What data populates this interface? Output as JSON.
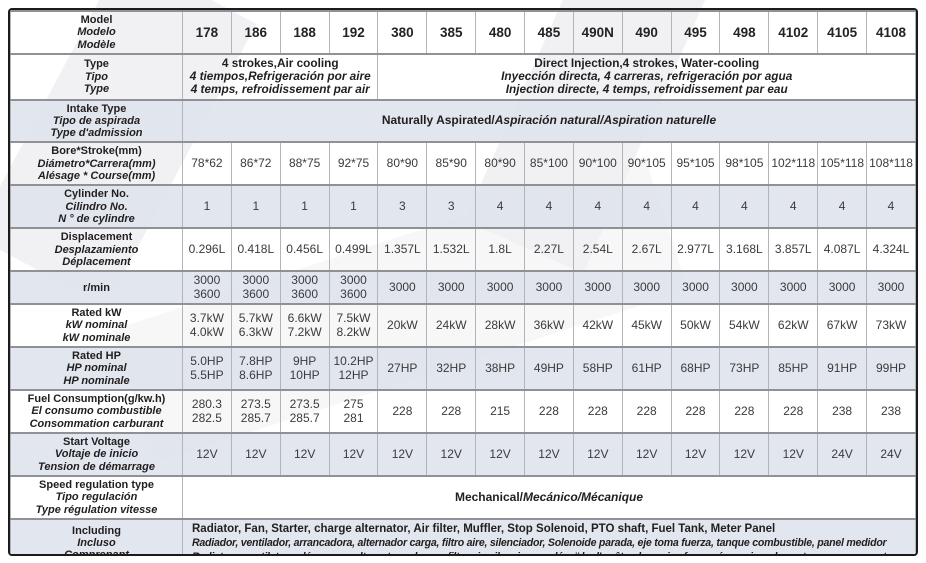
{
  "colors": {
    "shaded_row_bg": "#dee2ec",
    "outer_border": "#1b1b1b",
    "grid_horizontal": "#8f9196",
    "grid_vertical": "#b2b4b9",
    "label_text": "#211e1f",
    "value_text": "#3b3b3b",
    "watermark": "#f1f1f3"
  },
  "table": {
    "rows": [
      {
        "kind": "header",
        "shaded": false,
        "label": [
          "Model",
          "Modelo",
          "Modèle"
        ],
        "columns": [
          "178",
          "186",
          "188",
          "192",
          "380",
          "385",
          "480",
          "485",
          "490N",
          "490",
          "495",
          "498",
          "4102",
          "4105",
          "4108"
        ]
      },
      {
        "kind": "split",
        "shaded": false,
        "label": [
          "Type",
          "Tipo",
          "Type"
        ],
        "cells": [
          {
            "span": 4,
            "lines": [
              "4 strokes,Air cooling",
              "4 tiempos,Refrigeración por aire",
              "4 temps, refroidissement par air"
            ]
          },
          {
            "span": 11,
            "lines": [
              "Direct Injection,4 strokes, Water-cooling",
              "Inyección directa, 4 carreras, refrigeración por agua",
              "Injection directe, 4 temps, refroidissement par eau"
            ]
          }
        ]
      },
      {
        "kind": "merged",
        "shaded": true,
        "label": [
          "Intake Type",
          "Tipo de aspirada",
          "Type d'admission"
        ],
        "en": "Naturally Aspirated",
        "rest": "Aspiración natural/Aspiration naturelle"
      },
      {
        "kind": "values",
        "shaded": false,
        "label": [
          "Bore*Stroke(mm)",
          "Diámetro*Carrera(mm)",
          "Alésage * Course(mm)"
        ],
        "values": [
          "78*62",
          "86*72",
          "88*75",
          "92*75",
          "80*90",
          "85*90",
          "80*90",
          "85*100",
          "90*100",
          "90*105",
          "95*105",
          "98*105",
          "102*118",
          "105*118",
          "108*118"
        ]
      },
      {
        "kind": "values",
        "shaded": true,
        "label": [
          "Cylinder No.",
          "Cilindro No.",
          "N ° de cylindre"
        ],
        "values": [
          "1",
          "1",
          "1",
          "1",
          "3",
          "3",
          "4",
          "4",
          "4",
          "4",
          "4",
          "4",
          "4",
          "4",
          "4"
        ]
      },
      {
        "kind": "values",
        "shaded": false,
        "label": [
          "Displacement",
          "Desplazamiento",
          "Déplacement"
        ],
        "values": [
          "0.296L",
          "0.418L",
          "0.456L",
          "0.499L",
          "1.357L",
          "1.532L",
          "1.8L",
          "2.27L",
          "2.54L",
          "2.67L",
          "2.977L",
          "3.168L",
          "3.857L",
          "4.087L",
          "4.324L"
        ]
      },
      {
        "kind": "values",
        "shaded": true,
        "label": [
          "r/min"
        ],
        "values": [
          [
            "3000",
            "3600"
          ],
          [
            "3000",
            "3600"
          ],
          [
            "3000",
            "3600"
          ],
          [
            "3000",
            "3600"
          ],
          "3000",
          "3000",
          "3000",
          "3000",
          "3000",
          "3000",
          "3000",
          "3000",
          "3000",
          "3000",
          "3000"
        ]
      },
      {
        "kind": "values",
        "shaded": false,
        "label": [
          "Rated kW",
          "kW nominal",
          "kW nominale"
        ],
        "values": [
          [
            "3.7kW",
            "4.0kW"
          ],
          [
            "5.7kW",
            "6.3kW"
          ],
          [
            "6.6kW",
            "7.2kW"
          ],
          [
            "7.5kW",
            "8.2kW"
          ],
          "20kW",
          "24kW",
          "28kW",
          "36kW",
          "42kW",
          "45kW",
          "50kW",
          "54kW",
          "62kW",
          "67kW",
          "73kW"
        ]
      },
      {
        "kind": "values",
        "shaded": true,
        "label": [
          "Rated HP",
          "HP nominal",
          "HP nominale"
        ],
        "values": [
          [
            "5.0HP",
            "5.5HP"
          ],
          [
            "7.8HP",
            "8.6HP"
          ],
          [
            "9HP",
            "10HP"
          ],
          [
            "10.2HP",
            "12HP"
          ],
          "27HP",
          "32HP",
          "38HP",
          "49HP",
          "58HP",
          "61HP",
          "68HP",
          "73HP",
          "85HP",
          "91HP",
          "99HP"
        ]
      },
      {
        "kind": "values",
        "shaded": false,
        "label": [
          "Fuel Consumption(g/kw.h)",
          "El consumo combustible",
          "Consommation carburant"
        ],
        "values": [
          [
            "280.3",
            "282.5"
          ],
          [
            "273.5",
            "285.7"
          ],
          [
            "273.5",
            "285.7"
          ],
          [
            "275",
            "281"
          ],
          "228",
          "228",
          "215",
          "228",
          "228",
          "228",
          "228",
          "228",
          "228",
          "238",
          "238"
        ]
      },
      {
        "kind": "values",
        "shaded": true,
        "label": [
          "Start Voltage",
          "Voltaje de inicio",
          "Tension de démarrage"
        ],
        "values": [
          "12V",
          "12V",
          "12V",
          "12V",
          "12V",
          "12V",
          "12V",
          "12V",
          "12V",
          "12V",
          "12V",
          "12V",
          "12V",
          "24V",
          "24V"
        ]
      },
      {
        "kind": "merged",
        "shaded": false,
        "label": [
          "Speed regulation type",
          "Tipo regulación",
          "Type régulation vitesse"
        ],
        "en": "Mechanical",
        "rest": "Mecánico/Mécanique"
      },
      {
        "kind": "including",
        "shaded": true,
        "label": [
          "Including",
          "Incluso",
          "Comprenant"
        ],
        "lines": [
          "Radiator, Fan, Starter, charge alternator, Air filter, Muffler, Stop Solenoid, PTO shaft, Fuel Tank, Meter Panel",
          "Radiador, ventilador, arrancadora, alternador carga, filtro aire, silenciador, Solenoide parada, eje toma fuerza, tanque combustible, panel medidor",
          "Radiateur, ventilateur, démarreur, alternateur charge, filtre air, silencieux, solénoïde d'arrêt, arbre prise force, réservoir carburant, panneau compteur"
        ]
      }
    ]
  }
}
